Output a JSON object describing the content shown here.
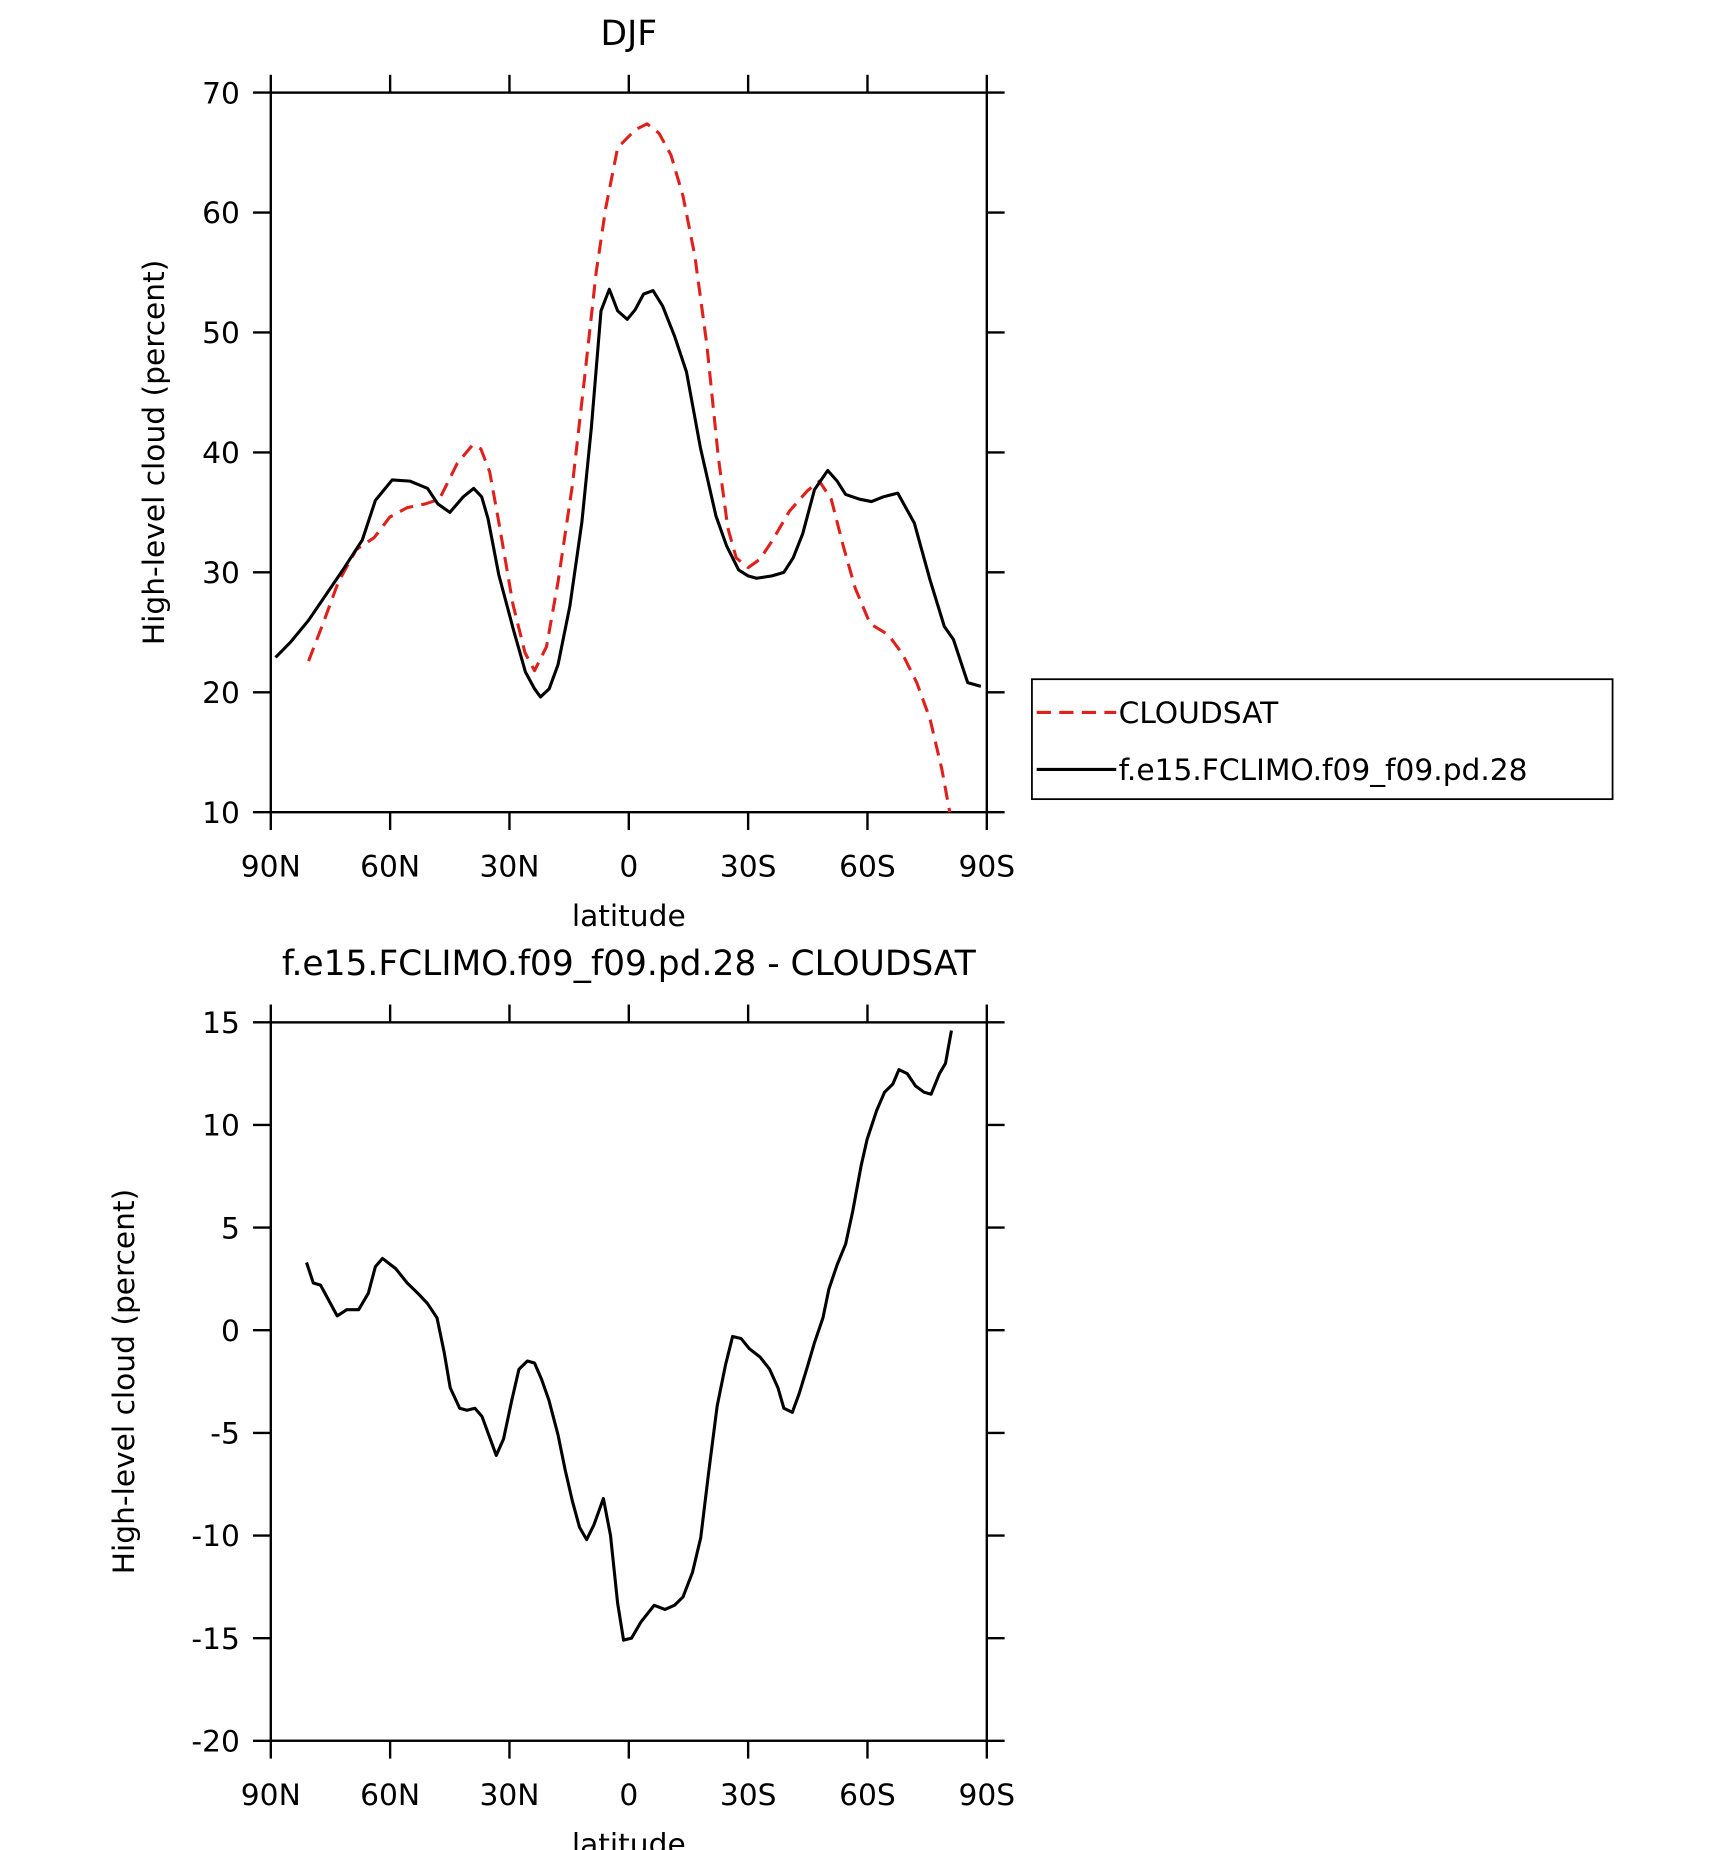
{
  "chart_data": [
    {
      "type": "line",
      "title": "DJF",
      "x_label": "latitude",
      "y_label": "High-level cloud (percent)",
      "xlim": [
        90,
        -90
      ],
      "xticks": [
        {
          "value": 90,
          "label": "90N"
        },
        {
          "value": 60,
          "label": "60N"
        },
        {
          "value": 30,
          "label": "30N"
        },
        0,
        {
          "value": -30,
          "label": "30S"
        },
        {
          "value": -60,
          "label": "60S"
        },
        {
          "value": -90,
          "label": "90S"
        }
      ],
      "ylim": [
        10,
        70
      ],
      "yticks": [
        10,
        20,
        30,
        40,
        50,
        60,
        70
      ],
      "legend": "right",
      "series": [
        {
          "name": "CLOUDSAT",
          "color": "#e0201b",
          "line_style": "dashed",
          "x": [
            80.5,
            76.9,
            73,
            68.5,
            64,
            60.1,
            55.7,
            51.2,
            47.6,
            43.1,
            39.3,
            37.2,
            35,
            32.7,
            29.1,
            26.1,
            23.7,
            20.7,
            17.8,
            14.2,
            11.2,
            8.2,
            5.8,
            2.8,
            -1.6,
            -4.6,
            -7.6,
            -10.6,
            -13.6,
            -16.6,
            -19.6,
            -22.5,
            -24.9,
            -27,
            -30,
            -33,
            -36,
            -40.4,
            -44.9,
            -47.9,
            -50.9,
            -53.9,
            -56.9,
            -60.7,
            -65.2,
            -68.8,
            -72.4,
            -75.7,
            -78.7,
            -80.7
          ],
          "values": [
            22.6,
            25.7,
            29.2,
            31.9,
            32.9,
            34.6,
            35.4,
            35.7,
            36.1,
            39.1,
            40.6,
            40.3,
            38.4,
            34.2,
            27.3,
            23.3,
            21.8,
            23.8,
            29.2,
            37.2,
            46,
            55,
            60.4,
            65.4,
            66.9,
            67.4,
            66.6,
            64.8,
            61.4,
            56.4,
            49,
            39.6,
            33.7,
            31.2,
            30.4,
            31.1,
            32.6,
            35.1,
            36.8,
            37.6,
            36.1,
            32.2,
            28.7,
            25.7,
            24.8,
            23.2,
            20.8,
            17.8,
            13.6,
            10
          ]
        },
        {
          "name": "f.e15.FCLIMO.f09_f09.pd.28",
          "color": "#000000",
          "line_style": "solid",
          "x": [
            88.8,
            85,
            80.5,
            76,
            71.5,
            67,
            63.7,
            59.5,
            55,
            50.6,
            48,
            45,
            41.6,
            39,
            37,
            35.4,
            32.7,
            29,
            26,
            23.7,
            22.2,
            20,
            17.8,
            14.8,
            11.8,
            9.4,
            7,
            4.9,
            2.8,
            0.4,
            -1.6,
            -3.7,
            -6.1,
            -8.5,
            -11.5,
            -14.5,
            -18,
            -21.9,
            -24.6,
            -27.6,
            -30,
            -32.1,
            -36,
            -39,
            -41.3,
            -43.7,
            -46.7,
            -50,
            -52.4,
            -54.5,
            -58,
            -61,
            -64,
            -67.6,
            -71.8,
            -75.7,
            -79.3,
            -81.6,
            -85.2,
            -88.5
          ],
          "values": [
            22.9,
            24.2,
            26,
            28.2,
            30.4,
            32.7,
            36,
            37.7,
            37.6,
            37,
            35.7,
            35,
            36.3,
            37,
            36.3,
            34.5,
            29.8,
            25.2,
            21.7,
            20.3,
            19.6,
            20.3,
            22.3,
            27.2,
            34.2,
            42.1,
            51.8,
            53.6,
            51.8,
            51.1,
            51.9,
            53.2,
            53.5,
            52.2,
            49.7,
            46.7,
            40.4,
            34.7,
            32.2,
            30.2,
            29.7,
            29.5,
            29.7,
            30,
            31.2,
            33.2,
            36.9,
            38.5,
            37.6,
            36.5,
            36.1,
            35.9,
            36.3,
            36.6,
            34.1,
            29.4,
            25.5,
            24.4,
            20.8,
            20.5
          ]
        }
      ]
    },
    {
      "type": "line",
      "title": "f.e15.FCLIMO.f09_f09.pd.28 - CLOUDSAT",
      "x_label": "latitude",
      "y_label": "High-level cloud (percent)",
      "xlim": [
        90,
        -90
      ],
      "xticks": [
        {
          "value": 90,
          "label": "90N"
        },
        {
          "value": 60,
          "label": "60N"
        },
        {
          "value": 30,
          "label": "30N"
        },
        0,
        {
          "value": -30,
          "label": "30S"
        },
        {
          "value": -60,
          "label": "60S"
        },
        {
          "value": -90,
          "label": "90S"
        }
      ],
      "ylim": [
        -20,
        15
      ],
      "yticks": [
        -20,
        -15,
        -10,
        -5,
        0,
        5,
        10,
        15
      ],
      "series": [
        {
          "color": "#000000",
          "line_style": "solid",
          "x": [
            81,
            79.3,
            77.5,
            73.3,
            70.9,
            67.9,
            65.5,
            63.7,
            61.9,
            58.6,
            55.7,
            53,
            50.6,
            48.2,
            46.4,
            44.9,
            42.5,
            40.7,
            38.7,
            36.9,
            33.3,
            31.5,
            29.4,
            27.6,
            25.5,
            23.7,
            21.9,
            20.1,
            17.8,
            16,
            14.2,
            12.4,
            10.6,
            8.8,
            6.4,
            4.6,
            2.8,
            1.3,
            -0.7,
            -3.1,
            -6.4,
            -9.1,
            -11.5,
            -13.6,
            -16,
            -18.1,
            -20.1,
            -22.2,
            -24.3,
            -26.1,
            -28.2,
            -30.3,
            -33,
            -35.4,
            -37.5,
            -39,
            -41.1,
            -42.8,
            -45,
            -46.7,
            -48.8,
            -50.3,
            -52.4,
            -54.5,
            -56.3,
            -58.4,
            -59.9,
            -62.3,
            -64.3,
            -66.4,
            -67.9,
            -70,
            -72.1,
            -74.2,
            -76,
            -78.1,
            -79.6,
            -81.1
          ],
          "values": [
            3.3,
            2.3,
            2.2,
            0.7,
            1.0,
            1.0,
            1.8,
            3.1,
            3.5,
            3.0,
            2.3,
            1.8,
            1.3,
            0.6,
            -1.1,
            -2.8,
            -3.8,
            -3.9,
            -3.8,
            -4.2,
            -6.1,
            -5.3,
            -3.4,
            -1.9,
            -1.5,
            -1.6,
            -2.4,
            -3.4,
            -5.1,
            -6.8,
            -8.3,
            -9.6,
            -10.2,
            -9.5,
            -8.2,
            -10,
            -13.3,
            -15.1,
            -15,
            -14.2,
            -13.4,
            -13.6,
            -13.4,
            -13,
            -11.8,
            -10.1,
            -6.9,
            -3.7,
            -1.7,
            -0.3,
            -0.4,
            -0.9,
            -1.3,
            -1.9,
            -2.8,
            -3.8,
            -4.0,
            -3.1,
            -1.7,
            -0.6,
            0.6,
            2.0,
            3.2,
            4.2,
            5.8,
            8.0,
            9.3,
            10.7,
            11.6,
            12.0,
            12.7,
            12.5,
            11.9,
            11.6,
            11.5,
            12.5,
            13.0,
            14.6
          ]
        }
      ]
    }
  ]
}
